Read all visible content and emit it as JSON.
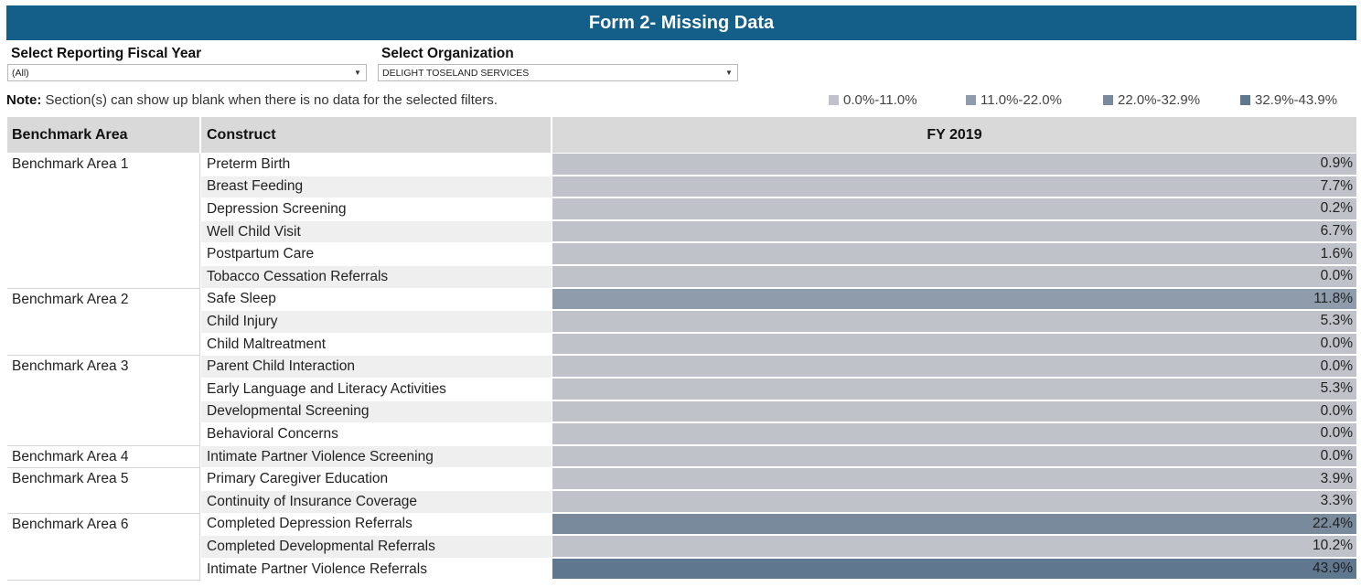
{
  "header": {
    "title": "Form 2- Missing Data"
  },
  "filters": {
    "fiscal_year": {
      "label": "Select Reporting Fiscal Year",
      "value": "(All)"
    },
    "organization": {
      "label": "Select Organization",
      "value": "DELIGHT TOSELAND SERVICES"
    }
  },
  "note": {
    "prefix": "Note:",
    "text": " Section(s) can show up blank when there is no data for the selected filters."
  },
  "legend": [
    {
      "label": "0.0%-11.0%",
      "color": "#bfc3c9"
    },
    {
      "label": "11.0%-22.0%",
      "color": "#8e9cac"
    },
    {
      "label": "22.0%-32.9%",
      "color": "#788a9c"
    },
    {
      "label": "32.9%-43.9%",
      "color": "#5f7890"
    }
  ],
  "table": {
    "columns": {
      "benchmark": "Benchmark Area",
      "construct": "Construct",
      "fy": "FY 2019"
    },
    "groups": [
      {
        "name": "Benchmark Area 1",
        "rows": [
          {
            "construct": "Preterm Birth",
            "value": "0.9%",
            "level": 0
          },
          {
            "construct": "Breast Feeding",
            "value": "7.7%",
            "level": 0
          },
          {
            "construct": "Depression Screening",
            "value": "0.2%",
            "level": 0
          },
          {
            "construct": "Well Child Visit",
            "value": "6.7%",
            "level": 0
          },
          {
            "construct": "Postpartum Care",
            "value": "1.6%",
            "level": 0
          },
          {
            "construct": "Tobacco Cessation Referrals",
            "value": "0.0%",
            "level": 0
          }
        ]
      },
      {
        "name": "Benchmark Area 2",
        "rows": [
          {
            "construct": "Safe Sleep",
            "value": "11.8%",
            "level": 1
          },
          {
            "construct": "Child Injury",
            "value": "5.3%",
            "level": 0
          },
          {
            "construct": "Child Maltreatment",
            "value": "0.0%",
            "level": 0
          }
        ]
      },
      {
        "name": "Benchmark Area 3",
        "rows": [
          {
            "construct": "Parent Child Interaction",
            "value": "0.0%",
            "level": 0
          },
          {
            "construct": "Early Language and Literacy Activities",
            "value": "5.3%",
            "level": 0
          },
          {
            "construct": "Developmental Screening",
            "value": "0.0%",
            "level": 0
          },
          {
            "construct": "Behavioral Concerns",
            "value": "0.0%",
            "level": 0
          }
        ]
      },
      {
        "name": "Benchmark Area 4",
        "rows": [
          {
            "construct": "Intimate Partner Violence Screening",
            "value": "0.0%",
            "level": 0
          }
        ]
      },
      {
        "name": "Benchmark Area 5",
        "rows": [
          {
            "construct": "Primary Caregiver Education",
            "value": "3.9%",
            "level": 0
          },
          {
            "construct": "Continuity of Insurance Coverage",
            "value": "3.3%",
            "level": 0
          }
        ]
      },
      {
        "name": "Benchmark Area 6",
        "rows": [
          {
            "construct": "Completed Depression Referrals",
            "value": "22.4%",
            "level": 2
          },
          {
            "construct": "Completed Developmental Referrals",
            "value": "10.2%",
            "level": 0
          },
          {
            "construct": "Intimate Partner Violence Referrals",
            "value": "43.9%",
            "level": 3
          }
        ]
      }
    ]
  }
}
